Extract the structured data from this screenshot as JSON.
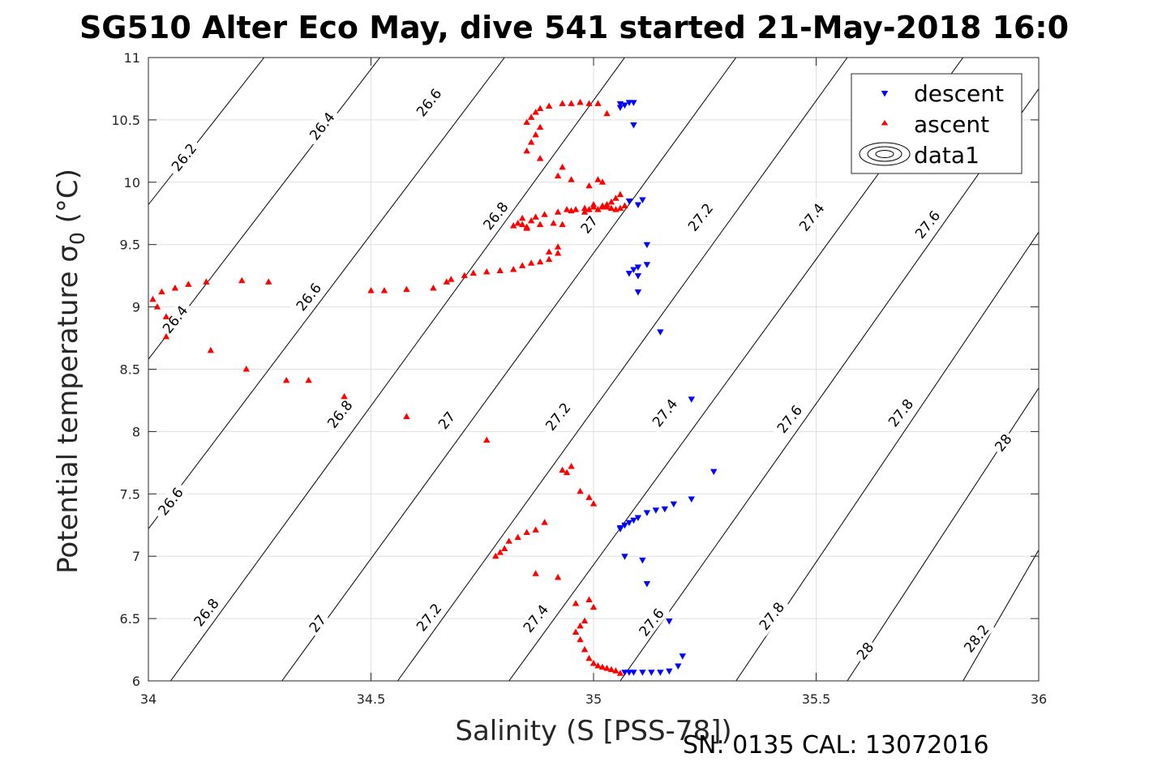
{
  "chart_data": {
    "type": "scatter",
    "title": "SG510 Alter Eco May, dive 541 started 21-May-2018 16:0",
    "xlabel": "Salinity (S [PSS-78])",
    "ylabel": "Potential temperature σ",
    "ylabel_subscript": "0",
    "ylabel_suffix": " (°C)",
    "footer": "SN: 0135  CAL: 13072016",
    "xlim": [
      34,
      36
    ],
    "ylim": [
      6,
      11
    ],
    "xticks": [
      34,
      34.5,
      35,
      35.5,
      36
    ],
    "xtick_labels": [
      "34",
      "34.5",
      "35",
      "35.5",
      "36"
    ],
    "yticks": [
      6,
      6.5,
      7,
      7.5,
      8,
      8.5,
      9,
      9.5,
      10,
      10.5,
      11
    ],
    "ytick_labels": [
      "6",
      "6.5",
      "7",
      "7.5",
      "8",
      "8.5",
      "9",
      "9.5",
      "10",
      "10.5",
      "11"
    ],
    "grid": true,
    "legend_position": "top-right",
    "legend": [
      "descent",
      "ascent",
      "data1"
    ],
    "colors": {
      "descent": "#0000ff",
      "ascent": "#ff0000",
      "contour": "#000000",
      "grid": "#dfdfdf"
    },
    "contours": [
      {
        "level": 26.2,
        "points": [
          [
            34.0,
            9.82
          ],
          [
            34.26,
            11.0
          ]
        ]
      },
      {
        "level": 26.4,
        "points": [
          [
            34.0,
            8.58
          ],
          [
            34.52,
            11.0
          ]
        ]
      },
      {
        "level": 26.6,
        "points": [
          [
            34.0,
            7.22
          ],
          [
            34.8,
            11.0
          ]
        ]
      },
      {
        "level": 26.8,
        "points": [
          [
            34.05,
            6.0
          ],
          [
            35.07,
            11.0
          ]
        ]
      },
      {
        "level": 27.0,
        "points": [
          [
            34.3,
            6.0
          ],
          [
            35.32,
            11.0
          ]
        ]
      },
      {
        "level": 27.2,
        "points": [
          [
            34.56,
            6.0
          ],
          [
            35.57,
            11.0
          ]
        ]
      },
      {
        "level": 27.4,
        "points": [
          [
            34.81,
            6.0
          ],
          [
            35.83,
            11.0
          ]
        ]
      },
      {
        "level": 27.6,
        "points": [
          [
            35.06,
            6.0
          ],
          [
            36.0,
            10.75
          ]
        ]
      },
      {
        "level": 27.8,
        "points": [
          [
            35.32,
            6.0
          ],
          [
            36.0,
            9.6
          ]
        ]
      },
      {
        "level": 28.0,
        "points": [
          [
            35.57,
            6.0
          ],
          [
            36.0,
            8.35
          ]
        ]
      },
      {
        "level": 28.2,
        "points": [
          [
            35.83,
            6.0
          ],
          [
            36.0,
            7.05
          ]
        ]
      }
    ],
    "contour_labels": [
      {
        "text": "26.2",
        "x": 34.08,
        "y": 10.2
      },
      {
        "text": "26.4",
        "x": 34.39,
        "y": 10.45
      },
      {
        "text": "26.6",
        "x": 34.63,
        "y": 10.64
      },
      {
        "text": "26.8",
        "x": 34.78,
        "y": 9.73
      },
      {
        "text": "27",
        "x": 34.99,
        "y": 9.66
      },
      {
        "text": "27.2",
        "x": 35.24,
        "y": 9.72
      },
      {
        "text": "27.4",
        "x": 35.49,
        "y": 9.72
      },
      {
        "text": "27.6",
        "x": 35.75,
        "y": 9.66
      },
      {
        "text": "26.4",
        "x": 34.06,
        "y": 8.9
      },
      {
        "text": "26.6",
        "x": 34.36,
        "y": 9.08
      },
      {
        "text": "26.8",
        "x": 34.43,
        "y": 8.14
      },
      {
        "text": "27",
        "x": 34.67,
        "y": 8.09
      },
      {
        "text": "27.2",
        "x": 34.92,
        "y": 8.12
      },
      {
        "text": "27.4",
        "x": 35.16,
        "y": 8.15
      },
      {
        "text": "27.6",
        "x": 35.44,
        "y": 8.1
      },
      {
        "text": "27.8",
        "x": 35.69,
        "y": 8.15
      },
      {
        "text": "28",
        "x": 35.92,
        "y": 7.91
      },
      {
        "text": "26.6",
        "x": 34.05,
        "y": 7.44
      },
      {
        "text": "26.8",
        "x": 34.13,
        "y": 6.55
      },
      {
        "text": "27",
        "x": 34.38,
        "y": 6.46
      },
      {
        "text": "27.2",
        "x": 34.63,
        "y": 6.51
      },
      {
        "text": "27.4",
        "x": 34.87,
        "y": 6.5
      },
      {
        "text": "27.6",
        "x": 35.13,
        "y": 6.47
      },
      {
        "text": "27.8",
        "x": 35.4,
        "y": 6.52
      },
      {
        "text": "28",
        "x": 35.61,
        "y": 6.24
      },
      {
        "text": "28.2",
        "x": 35.86,
        "y": 6.34
      }
    ],
    "series": [
      {
        "name": "descent",
        "marker": "triangle-down",
        "x": [
          35.06,
          35.08,
          35.09,
          35.07,
          35.06,
          35.09,
          35.1,
          35.08,
          35.11,
          35.12,
          35.09,
          35.1,
          35.12,
          35.1,
          35.08,
          35.1,
          35.15,
          35.22,
          35.27,
          35.22,
          35.18,
          35.16,
          35.14,
          35.12,
          35.1,
          35.09,
          35.08,
          35.07,
          35.06,
          35.06,
          35.07,
          35.11,
          35.12,
          35.17,
          35.2,
          35.19,
          35.17,
          35.15,
          35.13,
          35.11,
          35.09,
          35.08,
          35.07
        ],
        "y": [
          10.63,
          10.64,
          10.64,
          10.62,
          10.6,
          10.46,
          9.82,
          9.85,
          9.86,
          9.5,
          9.3,
          9.25,
          9.34,
          9.32,
          9.27,
          9.12,
          8.8,
          8.26,
          7.68,
          7.46,
          7.42,
          7.38,
          7.37,
          7.35,
          7.31,
          7.29,
          7.27,
          7.25,
          7.23,
          7.22,
          7.0,
          6.97,
          6.78,
          6.48,
          6.2,
          6.12,
          6.08,
          6.07,
          6.07,
          6.07,
          6.07,
          6.07,
          6.07
        ]
      },
      {
        "name": "ascent",
        "marker": "triangle-up",
        "x": [
          34.01,
          34.02,
          34.03,
          34.04,
          34.06,
          34.09,
          34.13,
          34.21,
          34.27,
          34.04,
          34.14,
          34.22,
          34.31,
          34.36,
          34.44,
          34.5,
          34.53,
          34.58,
          34.64,
          34.67,
          34.68,
          34.71,
          34.73,
          34.76,
          34.79,
          34.82,
          34.84,
          34.86,
          34.88,
          34.9,
          34.9,
          34.92,
          34.92,
          34.84,
          34.85,
          34.88,
          34.91,
          34.93,
          34.94,
          34.96,
          34.98,
          35.0,
          35.02,
          35.03,
          35.04,
          35.05,
          35.06,
          35.07,
          35.06,
          35.05,
          35.04,
          35.03,
          35.02,
          35.0,
          34.99,
          34.95,
          34.92,
          34.93,
          34.88,
          34.85,
          34.86,
          34.87,
          34.88,
          34.85,
          34.86,
          34.87,
          34.88,
          34.9,
          34.93,
          34.95,
          34.97,
          34.99,
          35.01,
          34.84,
          34.82,
          34.83,
          34.86,
          34.85,
          34.87,
          34.89,
          34.92,
          34.95,
          34.98,
          34.99,
          35.01,
          35.02,
          35.03,
          35.02,
          35.01,
          35.03,
          35.0,
          34.99,
          34.97,
          34.95,
          34.94,
          34.93,
          34.89,
          34.87,
          34.85,
          34.83,
          34.81,
          34.8,
          34.79,
          34.78,
          34.87,
          34.92,
          34.96,
          34.99,
          35.0,
          34.98,
          34.97,
          34.96,
          34.97,
          34.98,
          34.99,
          35.0,
          35.01,
          35.02,
          35.03,
          35.04,
          35.05,
          35.06,
          34.76,
          34.58
        ],
        "y": [
          9.06,
          9.0,
          9.12,
          8.92,
          9.15,
          9.18,
          9.2,
          9.21,
          9.2,
          8.76,
          8.65,
          8.5,
          8.41,
          8.41,
          8.28,
          9.13,
          9.13,
          9.14,
          9.15,
          9.2,
          9.22,
          9.25,
          9.27,
          9.28,
          9.29,
          9.3,
          9.33,
          9.35,
          9.36,
          9.38,
          9.44,
          9.43,
          9.48,
          9.66,
          9.64,
          9.66,
          9.67,
          9.66,
          9.78,
          9.78,
          9.79,
          9.8,
          9.8,
          9.82,
          9.84,
          9.87,
          9.9,
          9.81,
          9.79,
          9.78,
          9.79,
          9.8,
          9.81,
          9.82,
          9.97,
          10.02,
          10.05,
          10.12,
          10.19,
          10.25,
          10.32,
          10.38,
          10.44,
          10.48,
          10.52,
          10.56,
          10.59,
          10.61,
          10.63,
          10.63,
          10.64,
          10.63,
          10.63,
          9.71,
          9.65,
          9.67,
          9.69,
          9.63,
          9.72,
          9.74,
          9.76,
          9.77,
          9.76,
          9.78,
          9.78,
          9.8,
          9.8,
          10.0,
          10.02,
          10.55,
          7.42,
          7.47,
          7.52,
          7.72,
          7.67,
          7.69,
          7.27,
          7.21,
          7.19,
          7.15,
          7.12,
          7.06,
          7.03,
          7.0,
          6.86,
          6.83,
          6.62,
          6.65,
          6.59,
          6.48,
          6.44,
          6.39,
          6.33,
          6.25,
          6.18,
          6.14,
          6.12,
          6.11,
          6.1,
          6.09,
          6.08,
          6.06,
          7.93,
          8.12
        ]
      }
    ]
  }
}
